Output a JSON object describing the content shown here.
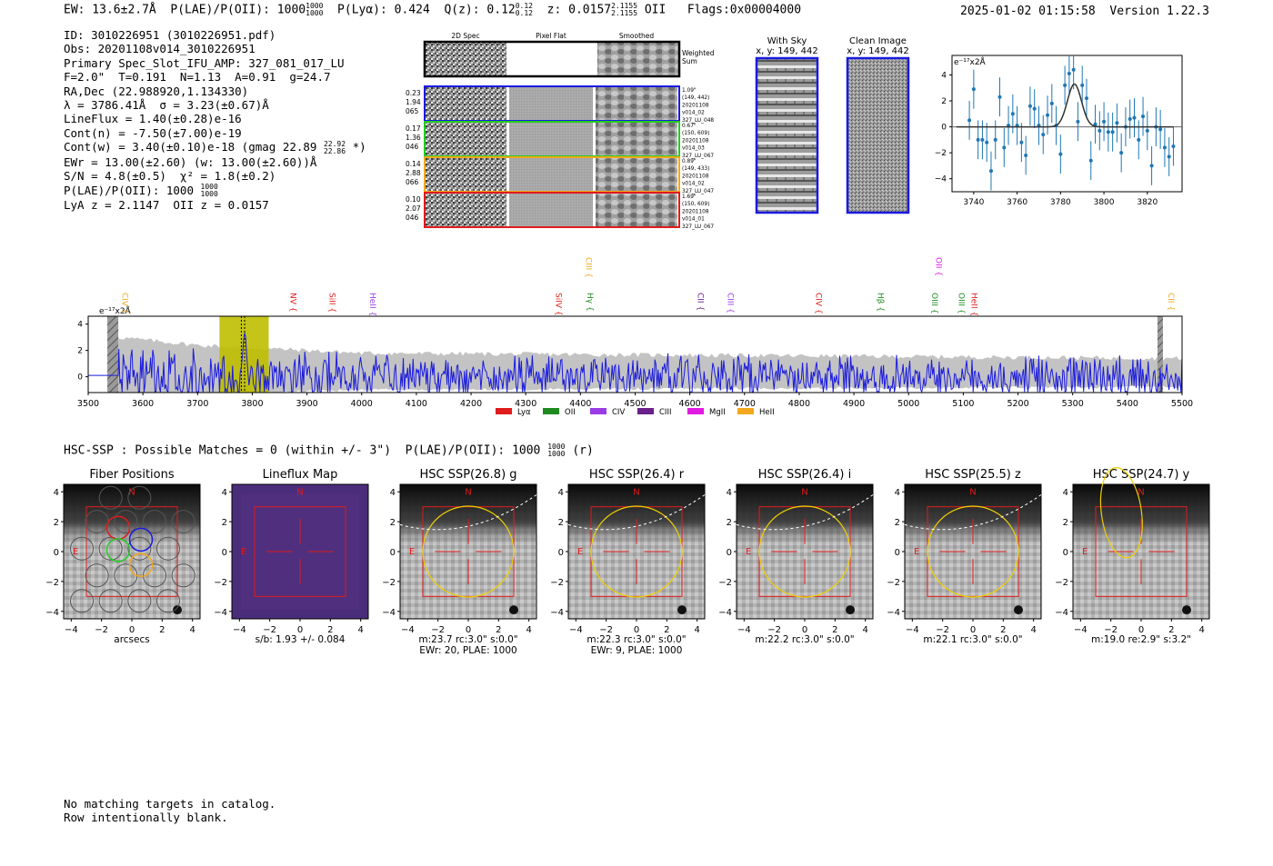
{
  "header": {
    "ew": "EW: 13.6±2.7Å",
    "plae": "P(LAE)/P(OII): 1000",
    "plae_hi": "1000",
    "plae_lo": "1000",
    "plya": "P(Lyα): 0.424",
    "qz": "Q(z): 0.12",
    "qz_hi": "0.12",
    "qz_lo": "0.12",
    "z": "z: 0.0157",
    "z_hi": "2.1155",
    "z_lo": "2.1155",
    "z_line": "OII",
    "flags": "Flags:0x00004000",
    "datetime": "2025-01-02 01:15:58",
    "version": "Version 1.22.3"
  },
  "info": {
    "id": "ID: 3010226951 (3010226951.pdf)",
    "obs": "Obs: 20201108v014_3010226951",
    "primary": "Primary Spec_Slot_IFU_AMP: 327_081_017_LU",
    "fit": "F=2.0\"  T=0.191  N=1.13  A=0.91  g=24.7",
    "radec": "RA,Dec (22.988920,1.134330)",
    "lambda": "λ = 3786.41Å  σ = 3.23(±0.67)Å",
    "lineflux": "LineFlux = 1.40(±0.28)e-16",
    "contn": "Cont(n) = -7.50(±7.00)e-19",
    "contw": "Cont(w) = 3.40(±0.10)e-18 (gmag 22.89",
    "contw_hi": "22.92",
    "contw_lo": "22.86",
    "contw_end": "*)",
    "ewr": "EWr = 13.00(±2.60) (w: 13.00(±2.60))Å",
    "sn": "S/N = 4.8(±0.5)  χ² = 1.8(±0.2)",
    "plae": "P(LAE)/P(OII): 1000",
    "plae_hi": "1000",
    "plae_lo": "1000",
    "lya_z": "LyA z = 2.1147  OII z = 0.0157"
  },
  "stamps": {
    "col_labels": [
      "2D Spec",
      "Pixel Flat",
      "Smoothed"
    ],
    "weighted_sum": [
      "Weighted",
      "Sum"
    ],
    "rows": [
      {
        "left": [
          "0.23",
          "1.94",
          "065"
        ],
        "right": [
          "1.09\"",
          "(149, 442)",
          "20201108",
          "v014_02",
          "327_LU_048"
        ],
        "color": "#1a1adf"
      },
      {
        "left": [
          "0.17",
          "1.36",
          "046"
        ],
        "right": [
          "0.67\"",
          "(150, 609)",
          "20201108",
          "v014_03",
          "327_LU_067"
        ],
        "color": "#22cc22"
      },
      {
        "left": [
          "0.14",
          "2.88",
          "066"
        ],
        "right": [
          "0.89\"",
          "(149, 433)",
          "20201108",
          "v014_02",
          "327_LU_047"
        ],
        "color": "#f2a81d"
      },
      {
        "left": [
          "0.10",
          "2.07",
          "046"
        ],
        "right": [
          "1.69\"",
          "(150, 609)",
          "20201108",
          "v014_01",
          "327_LU_067"
        ],
        "color": "#e01b1b"
      }
    ]
  },
  "sky_panels": [
    {
      "title": "With Sky",
      "subtitle": "x, y: 149, 442"
    },
    {
      "title": "Clean Image",
      "subtitle": "x, y: 149, 442"
    }
  ],
  "zoom_chart": {
    "unit_label": "e⁻¹⁷x2Å",
    "xticks": [
      "3740",
      "3760",
      "3780",
      "3800",
      "3820"
    ],
    "yticks": [
      "4",
      "2",
      "0",
      "−2",
      "−4"
    ]
  },
  "chart_data": [
    {
      "type": "scatter",
      "title": "",
      "xlabel": "",
      "ylabel": "e-17 x2Å",
      "xlim": [
        3730,
        3836
      ],
      "ylim": [
        -5,
        5.5
      ],
      "x": [
        3738,
        3740,
        3742,
        3744,
        3746,
        3748,
        3750,
        3752,
        3754,
        3756,
        3758,
        3760,
        3762,
        3764,
        3766,
        3768,
        3770,
        3772,
        3774,
        3776,
        3778,
        3780,
        3782,
        3784,
        3786,
        3788,
        3790,
        3792,
        3794,
        3796,
        3798,
        3800,
        3802,
        3804,
        3806,
        3808,
        3810,
        3812,
        3814,
        3816,
        3818,
        3820,
        3822,
        3824,
        3826,
        3828,
        3830,
        3832
      ],
      "y": [
        0.5,
        2.9,
        -1.0,
        -1.0,
        -1.2,
        -3.4,
        -1.0,
        2.3,
        -1.6,
        0.1,
        1.0,
        0.1,
        -1.2,
        -2.2,
        1.6,
        1.4,
        0.1,
        -0.6,
        0.9,
        1.8,
        0.1,
        -2.1,
        3.2,
        4.1,
        4.4,
        0.4,
        3.2,
        2.2,
        -2.6,
        0.2,
        -0.3,
        0.4,
        -0.4,
        -0.4,
        0.3,
        -2.0,
        0.0,
        0.6,
        0.7,
        -1.0,
        0.8,
        -0.3,
        -3.0,
        0.0,
        -0.2,
        -1.6,
        -2.3,
        -1.5
      ],
      "yerr": [
        1.5,
        1.5,
        1.5,
        1.5,
        1.5,
        1.5,
        1.5,
        1.5,
        1.5,
        1.5,
        1.5,
        1.5,
        1.5,
        1.5,
        1.5,
        1.5,
        1.5,
        1.5,
        1.5,
        1.5,
        1.5,
        1.5,
        1.5,
        1.5,
        1.5,
        1.5,
        1.5,
        1.5,
        1.5,
        1.5,
        1.5,
        1.5,
        1.5,
        1.5,
        1.5,
        1.5,
        1.5,
        1.5,
        1.5,
        1.5,
        1.5,
        1.5,
        1.5,
        1.5,
        1.5,
        1.5,
        1.5,
        1.5
      ],
      "model": {
        "type": "gaussian",
        "center": 3786.4,
        "sigma": 3.23,
        "amplitude": 3.3
      }
    },
    {
      "type": "line",
      "title": "",
      "xlabel": "",
      "ylabel": "e-17 x2Å",
      "xlim": [
        3500,
        5500
      ],
      "ylim": [
        -1.2,
        4.6
      ],
      "xticks": [
        "3500",
        "3600",
        "3700",
        "3800",
        "3900",
        "4000",
        "4100",
        "4200",
        "4300",
        "4400",
        "4500",
        "4600",
        "4700",
        "4800",
        "4900",
        "5000",
        "5100",
        "5200",
        "5300",
        "5400",
        "5500"
      ],
      "yticks": [
        "4",
        "2",
        "0"
      ],
      "unit_label": "e⁻¹⁷x2Å",
      "highlight_range": [
        3740,
        3830
      ],
      "masked_ranges": [
        [
          3535,
          3555
        ],
        [
          5455,
          5465
        ]
      ],
      "line_markers": [
        {
          "name": "CIV",
          "wave": 3557,
          "color": "#f2a81d",
          "row": 1
        },
        {
          "name": "NV",
          "wave": 3865,
          "color": "#e01b1b",
          "row": 1
        },
        {
          "name": "SiII",
          "wave": 3936,
          "color": "#e01b1b",
          "row": 1
        },
        {
          "name": "HeII",
          "wave": 4010,
          "color": "#9a3be5",
          "row": 1
        },
        {
          "name": "SiIV",
          "wave": 4350,
          "color": "#e01b1b",
          "row": 1
        },
        {
          "name": "CIII",
          "wave": 4405,
          "color": "#f2a81d",
          "row": 0
        },
        {
          "name": "Hγ",
          "wave": 4408,
          "color": "#1f8a1f",
          "row": 1
        },
        {
          "name": "CII",
          "wave": 4610,
          "color": "#6b1f8a",
          "row": 1
        },
        {
          "name": "CIII",
          "wave": 4665,
          "color": "#9a3be5",
          "row": 1
        },
        {
          "name": "CIV",
          "wave": 4826,
          "color": "#e01b1b",
          "row": 1
        },
        {
          "name": "Hβ",
          "wave": 4939,
          "color": "#1f8a1f",
          "row": 1
        },
        {
          "name": "OII",
          "wave": 5045,
          "color": "#e11ae1",
          "row": 0
        },
        {
          "name": "OIII",
          "wave": 5038,
          "color": "#1f8a1f",
          "row": 1
        },
        {
          "name": "OIII",
          "wave": 5087,
          "color": "#1f8a1f",
          "row": 1
        },
        {
          "name": "HeII",
          "wave": 5110,
          "color": "#e01b1b",
          "row": 1
        },
        {
          "name": "CII",
          "wave": 5470,
          "color": "#f2a81d",
          "row": 1
        }
      ],
      "legend": [
        {
          "label": "Lyα",
          "color": "#e01b1b"
        },
        {
          "label": "OII",
          "color": "#1f8a1f"
        },
        {
          "label": "CIV",
          "color": "#9a3be5"
        },
        {
          "label": "CIII",
          "color": "#6b1f8a"
        },
        {
          "label": "MgII",
          "color": "#e11ae1"
        },
        {
          "label": "HeII",
          "color": "#f2a81d"
        }
      ],
      "series": [
        {
          "name": "spectrum",
          "color": "#1a1adf",
          "description": "noisy flux around 0 with Lyα peak near 3786Å"
        },
        {
          "name": "error",
          "color": "#b8b8b8",
          "description": "grey error envelope"
        }
      ]
    }
  ],
  "hsc": {
    "header": "HSC-SSP : Possible Matches = 0 (within +/- 3\")  P(LAE)/P(OII): 1000",
    "header_hi": "1000",
    "header_lo": "1000",
    "header_end": "(r)",
    "axis_ticks": [
      "−4",
      "−2",
      "0",
      "2",
      "4"
    ],
    "yaxis_ticks": [
      "4",
      "2",
      "0",
      "−2",
      "−4"
    ],
    "panels": [
      {
        "title": "Fiber Positions",
        "caption1": "arcsecs",
        "caption2": "",
        "n": "N",
        "e": "E"
      },
      {
        "title": "Lineflux Map",
        "caption1": "s/b: 1.93 +/- 0.084",
        "caption2": "",
        "n": "N",
        "e": "E"
      },
      {
        "title": "HSC SSP(26.8) g",
        "caption1": "m:23.7 rc:3.0\"  s:0.0\"",
        "caption2": "EWr: 20, PLAE: 1000",
        "n": "N",
        "e": "E"
      },
      {
        "title": "HSC SSP(26.4) r",
        "caption1": "m:22.3 rc:3.0\"  s:0.0\"",
        "caption2": "EWr: 9, PLAE: 1000",
        "n": "N",
        "e": "E"
      },
      {
        "title": "HSC SSP(26.4) i",
        "caption1": "m:22.2 rc:3.0\"  s:0.0\"",
        "caption2": "",
        "n": "N",
        "e": "E"
      },
      {
        "title": "HSC SSP(25.5) z",
        "caption1": "m:22.1 rc:3.0\"  s:0.0\"",
        "caption2": "",
        "n": "N",
        "e": "E"
      },
      {
        "title": "HSC SSP(24.7) y",
        "caption1": "m:19.0  re:2.9\"  s:3.2\"",
        "caption2": "",
        "n": "N",
        "e": "E"
      }
    ]
  },
  "notes": {
    "line1": "No matching targets in catalog.",
    "line2": "Row intentionally blank."
  },
  "colors": {
    "spectrum": "#1a1adf",
    "error": "#b8b8b8",
    "highlight": "#bfbf00",
    "zoom_points": "#1f77b4",
    "ellipse": "#f0d000",
    "box": "#e01b1b"
  }
}
